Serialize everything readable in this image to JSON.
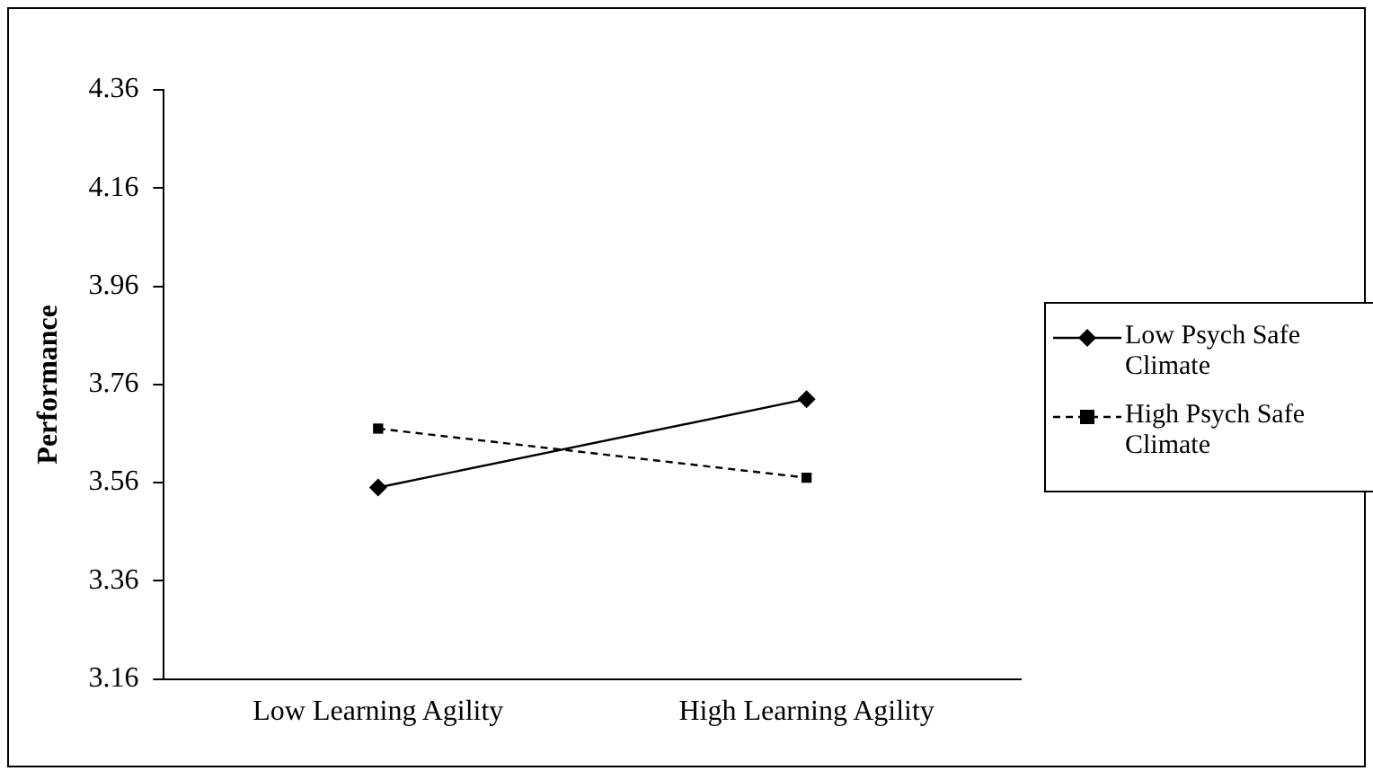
{
  "chart_data": {
    "type": "line",
    "ylabel": "Performance",
    "categories": [
      "Low Learning Agility",
      "High Learning Agility"
    ],
    "series": [
      {
        "name": "Low Psych Safe Climate",
        "color": "#000000",
        "values": [
          3.55,
          3.73
        ],
        "marker": "diamond",
        "line_style": "solid"
      },
      {
        "name": "High Psych Safe Climate",
        "color": "#000000",
        "values": [
          3.67,
          3.57
        ],
        "marker": "square",
        "line_style": "dashed"
      }
    ],
    "ylim": [
      3.16,
      4.36
    ],
    "yticks": [
      3.16,
      3.36,
      3.56,
      3.76,
      3.96,
      4.16,
      4.36
    ],
    "grid": false,
    "legend": "right"
  }
}
